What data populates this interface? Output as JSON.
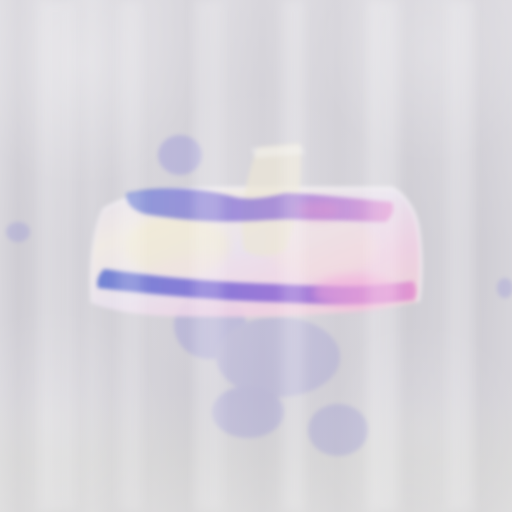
{
  "image": {
    "subject": "",
    "icons": {
      "background": "blurred-gray-background-icon",
      "object": "glass-bowl-icon",
      "highlight": "light-reflection-icon"
    },
    "colors": {
      "background": "#cfcdd3",
      "outline": "#f2eff3",
      "violet": "#7a67d8",
      "blue": "#6f84d8",
      "pink": "#f0a6dc",
      "cream": "#efe8c8"
    }
  }
}
